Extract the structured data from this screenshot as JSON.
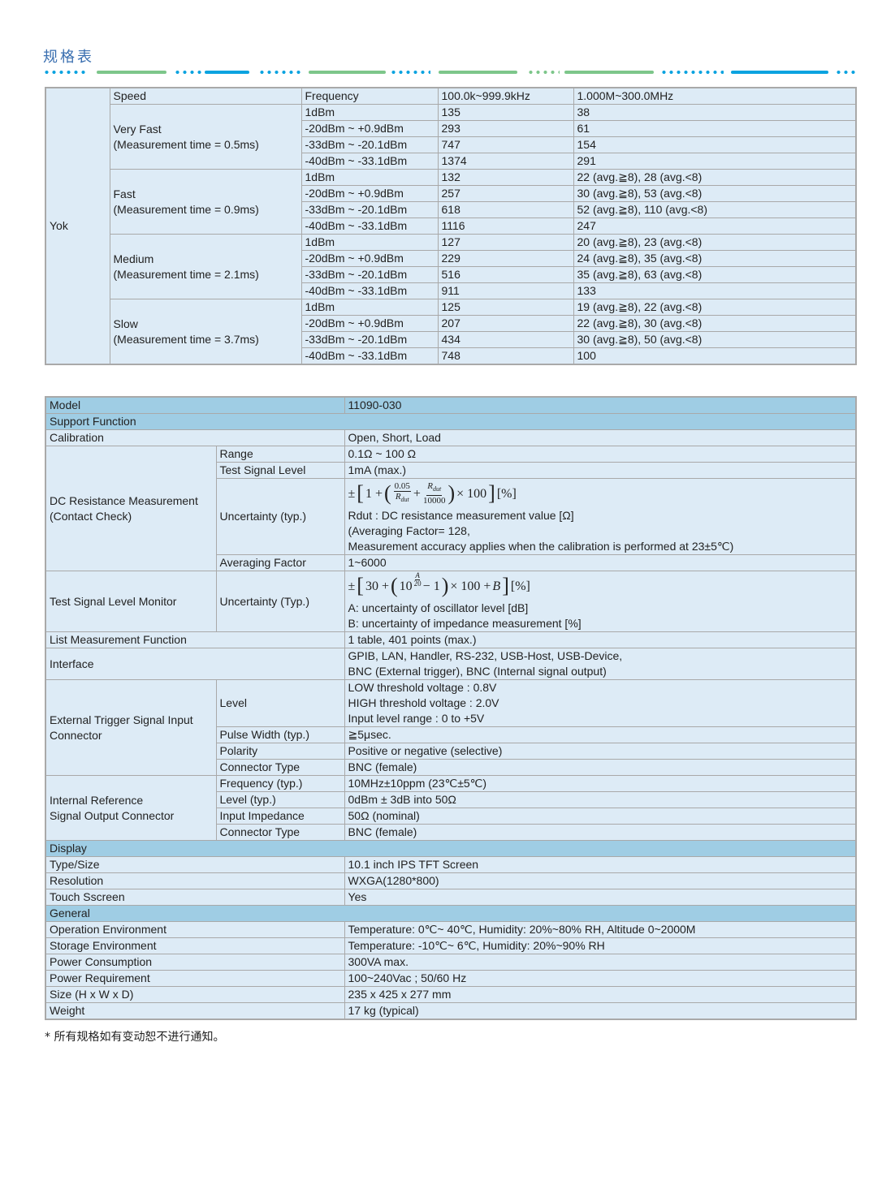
{
  "page_title": "规格表",
  "colors": {
    "accent_blue": "#0aa3e0",
    "accent_green": "#7dc68a",
    "cell_bg": "#ddebf6",
    "section_bg": "#9fcde4",
    "title": "#3a6fb0"
  },
  "speed_table": {
    "group_label": "Yok",
    "header": [
      "Speed",
      "Frequency",
      "100.0k~999.9kHz",
      "1.000M~300.0MHz"
    ],
    "speeds": [
      {
        "name": "Very Fast",
        "time": "(Measurement time = 0.5ms)",
        "rows": [
          [
            "1dBm",
            "135",
            "38"
          ],
          [
            "-20dBm ~ +0.9dBm",
            "293",
            "61"
          ],
          [
            "-33dBm ~ -20.1dBm",
            "747",
            "154"
          ],
          [
            "-40dBm ~ -33.1dBm",
            "1374",
            "291"
          ]
        ]
      },
      {
        "name": "Fast",
        "time": "(Measurement time = 0.9ms)",
        "rows": [
          [
            "1dBm",
            "132",
            "22 (avg.≧8),  28 (avg.<8)"
          ],
          [
            "-20dBm ~ +0.9dBm",
            "257",
            "30 (avg.≧8),  53 (avg.<8)"
          ],
          [
            "-33dBm ~ -20.1dBm",
            "618",
            "52 (avg.≧8), 110 (avg.<8)"
          ],
          [
            "-40dBm ~ -33.1dBm",
            "1116",
            "247"
          ]
        ]
      },
      {
        "name": "Medium",
        "time": "(Measurement time = 2.1ms)",
        "rows": [
          [
            "1dBm",
            "127",
            "20 (avg.≧8), 23 (avg.<8)"
          ],
          [
            "-20dBm ~ +0.9dBm",
            "229",
            "24 (avg.≧8), 35 (avg.<8)"
          ],
          [
            "-33dBm ~ -20.1dBm",
            "516",
            "35 (avg.≧8), 63 (avg.<8)"
          ],
          [
            "-40dBm ~ -33.1dBm",
            "911",
            "133"
          ]
        ]
      },
      {
        "name": "Slow",
        "time": "(Measurement time = 3.7ms)",
        "rows": [
          [
            "1dBm",
            "125",
            "19 (avg.≧8), 22 (avg.<8)"
          ],
          [
            "-20dBm ~ +0.9dBm",
            "207",
            "22 (avg.≧8), 30 (avg.<8)"
          ],
          [
            "-33dBm ~ -20.1dBm",
            "434",
            "30 (avg.≧8), 50 (avg.<8)"
          ],
          [
            "-40dBm ~ -33.1dBm",
            "748",
            "100"
          ]
        ]
      }
    ]
  },
  "spec_table": {
    "rows": [
      {
        "kind": "section",
        "label": "Model",
        "value": "11090-030"
      },
      {
        "kind": "section",
        "label": "Support Function"
      },
      {
        "label": [
          "Calibration"
        ],
        "value": [
          "Open, Short, Load"
        ]
      },
      {
        "label": [
          "DC Resistance Measurement",
          "(Contact Check)"
        ],
        "items": [
          {
            "label": "Range",
            "value": [
              "0.1Ω ~ 100 Ω"
            ]
          },
          {
            "label": "Test Signal Level",
            "value": [
              "1mA (max.)"
            ]
          },
          {
            "label": "Uncertainty (typ.)",
            "formula": "f1",
            "value": [
              "Rdut : DC resistance measurement value [Ω]",
              "(Averaging Factor= 128,",
              "Measurement accuracy applies when the calibration is performed at 23±5℃)"
            ]
          },
          {
            "label": "Averaging Factor",
            "value": [
              "1~6000"
            ]
          }
        ]
      },
      {
        "label": [
          "Test Signal Level Monitor"
        ],
        "items": [
          {
            "label": "Uncertainty (Typ.)",
            "formula": "f2",
            "value": [
              "A: uncertainty of oscillator level [dB]",
              "B: uncertainty of impedance measurement [%]"
            ]
          }
        ]
      },
      {
        "label": [
          "List Measurement Function"
        ],
        "value": [
          "1 table, 401 points (max.)"
        ]
      },
      {
        "label": [
          "Interface"
        ],
        "value": [
          "GPIB, LAN, Handler, RS-232, USB-Host, USB-Device,",
          "BNC (External trigger), BNC (Internal signal output)"
        ]
      },
      {
        "label": [
          "External Trigger Signal Input",
          "Connector"
        ],
        "items": [
          {
            "label": "Level",
            "value": [
              "LOW threshold voltage : 0.8V",
              "HIGH threshold voltage : 2.0V",
              "Input level range : 0 to  +5V"
            ]
          },
          {
            "label": "Pulse Width (typ.)",
            "value": [
              "≧5μsec."
            ]
          },
          {
            "label": "Polarity",
            "value": [
              "Positive or negative (selective)"
            ]
          },
          {
            "label": "Connector Type",
            "value": [
              "BNC (female)"
            ]
          }
        ]
      },
      {
        "label": [
          "Internal Reference",
          "Signal Output Connector"
        ],
        "items": [
          {
            "label": "Frequency (typ.)",
            "value": [
              "10MHz±10ppm (23℃±5℃)"
            ]
          },
          {
            "label": "Level (typ.)",
            "value": [
              "0dBm ± 3dB into 50Ω"
            ]
          },
          {
            "label": "Input Impedance",
            "value": [
              "50Ω (nominal)"
            ]
          },
          {
            "label": "Connector Type",
            "value": [
              "BNC (female)"
            ]
          }
        ]
      },
      {
        "kind": "section",
        "label": "Display"
      },
      {
        "label": [
          "Type/Size"
        ],
        "value": [
          "10.1 inch IPS TFT Screen"
        ]
      },
      {
        "label": [
          "Resolution"
        ],
        "value": [
          "WXGA(1280*800)"
        ]
      },
      {
        "label": [
          "Touch Sscreen"
        ],
        "value": [
          "Yes"
        ]
      },
      {
        "kind": "section",
        "label": "General"
      },
      {
        "label": [
          "Operation Environment"
        ],
        "value": [
          "Temperature: 0℃~ 40℃, Humidity: 20%~80% RH, Altitude 0~2000M"
        ]
      },
      {
        "label": [
          "Storage Environment"
        ],
        "value": [
          "Temperature: -10℃~ 6℃, Humidity: 20%~90% RH"
        ]
      },
      {
        "label": [
          "Power Consumption"
        ],
        "value": [
          "300VA max."
        ]
      },
      {
        "label": [
          "Power Requirement"
        ],
        "value": [
          "100~240Vac ; 50/60 Hz"
        ]
      },
      {
        "label": [
          "Size (H x W x D)"
        ],
        "value": [
          "235 x 425 x 277 mm"
        ]
      },
      {
        "label": [
          "Weight"
        ],
        "value": [
          "17 kg (typical)"
        ]
      }
    ],
    "formulas": {
      "f1": {
        "pm": "±",
        "lb": "[",
        "one": "1 +",
        "lp": "(",
        "n1": "0.05",
        "d1": "R",
        "d1sub": "dut",
        "plus": "+",
        "n2": "R",
        "n2sub": "dut",
        "d2": "10000",
        "rp": ")",
        "times": "× 100",
        "rb": "]",
        "unit": "[%]"
      },
      "f2": {
        "pm": "±",
        "lb": "[",
        "thirty": "30 +",
        "lp": "(",
        "ten": "10",
        "en": "A",
        "ed": "20",
        "minus": "− 1",
        "rp": ")",
        "times": "× 100 +",
        "b": "B",
        "rb": "]",
        "unit": "[%]"
      }
    }
  },
  "footnote": "* 所有规格如有变动恕不进行通知。"
}
